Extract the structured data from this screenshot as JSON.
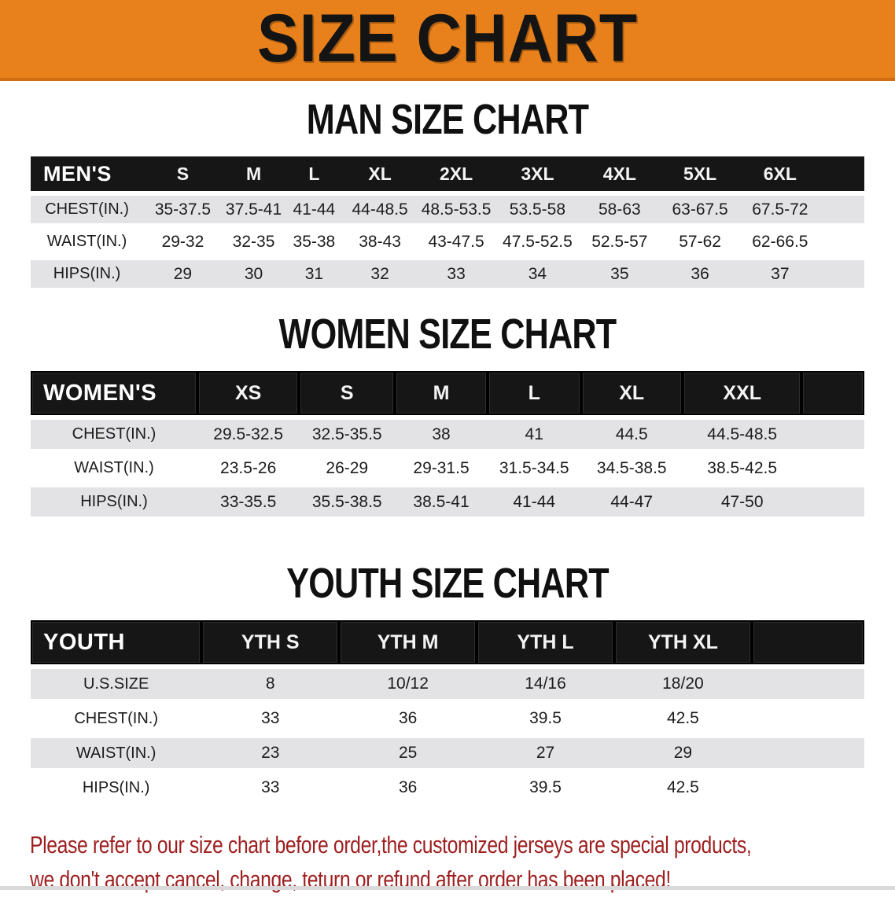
{
  "banner": {
    "title": "SIZE CHART"
  },
  "tables": [
    {
      "heading": "MAN SIZE CHART",
      "header": {
        "label": "MEN'S",
        "sizes": [
          "S",
          "M",
          "L",
          "XL",
          "2XL",
          "3XL",
          "4XL",
          "5XL",
          "6XL"
        ]
      },
      "rows": [
        {
          "label": "CHEST(IN.)",
          "values": [
            "35-37.5",
            "37.5-41",
            "41-44",
            "44-48.5",
            "48.5-53.5",
            "53.5-58",
            "58-63",
            "63-67.5",
            "67.5-72"
          ]
        },
        {
          "label": "WAIST(IN.)",
          "values": [
            "29-32",
            "32-35",
            "35-38",
            "38-43",
            "43-47.5",
            "47.5-52.5",
            "52.5-57",
            "57-62",
            "62-66.5"
          ]
        },
        {
          "label": "HIPS(IN.)",
          "values": [
            "29",
            "30",
            "31",
            "32",
            "33",
            "34",
            "35",
            "36",
            "37"
          ]
        }
      ]
    },
    {
      "heading": "WOMEN SIZE CHART",
      "header": {
        "label": "WOMEN'S",
        "sizes": [
          "XS",
          "S",
          "M",
          "L",
          "XL",
          "XXL"
        ]
      },
      "rows": [
        {
          "label": "CHEST(IN.)",
          "values": [
            "29.5-32.5",
            "32.5-35.5",
            "38",
            "41",
            "44.5",
            "44.5-48.5"
          ]
        },
        {
          "label": "WAIST(IN.)",
          "values": [
            "23.5-26",
            "26-29",
            "29-31.5",
            "31.5-34.5",
            "34.5-38.5",
            "38.5-42.5"
          ]
        },
        {
          "label": "HIPS(IN.)",
          "values": [
            "33-35.5",
            "35.5-38.5",
            "38.5-41",
            "41-44",
            "44-47",
            "47-50"
          ]
        }
      ]
    },
    {
      "heading": "YOUTH SIZE CHART",
      "header": {
        "label": "YOUTH",
        "sizes": [
          "YTH S",
          "YTH M",
          "YTH L",
          "YTH XL"
        ]
      },
      "rows": [
        {
          "label": "U.S.SIZE",
          "values": [
            "8",
            "10/12",
            "14/16",
            "18/20"
          ]
        },
        {
          "label": "CHEST(IN.)",
          "values": [
            "33",
            "36",
            "39.5",
            "42.5"
          ]
        },
        {
          "label": "WAIST(IN.)",
          "values": [
            "23",
            "25",
            "27",
            "29"
          ]
        },
        {
          "label": "HIPS(IN.)",
          "values": [
            "33",
            "36",
            "39.5",
            "42.5"
          ]
        }
      ]
    }
  ],
  "disclaimer": {
    "line1": "Please refer to our size chart before order,the customized jerseys are special products,",
    "line2": "we don't accept cancel, change, teturn or refund after order has been placed!"
  },
  "colors": {
    "banner_bg": "#E8811C",
    "banner_border": "#CF6D10",
    "header_bg": "#161616",
    "row_stripe": "#E3E3E6",
    "disclaimer_text": "#9E1F1F"
  }
}
